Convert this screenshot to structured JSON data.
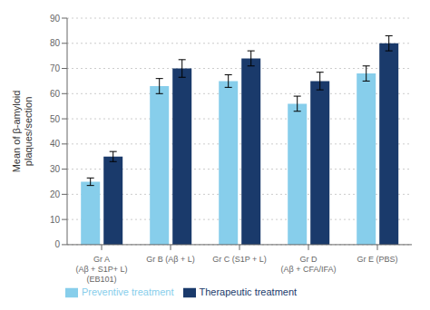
{
  "chart_data": {
    "type": "bar",
    "categories": [
      "Gr A\n(Aβ + S1P+ L)\n(EB101)",
      "Gr B (Aβ + L)",
      "Gr C (S1P + L)",
      "Gr D\n(Aβ + CFA/IFA)",
      "Gr E (PBS)"
    ],
    "series": [
      {
        "name": "Preventive treatment",
        "color": "#87CEEB",
        "values": [
          25,
          63,
          65,
          56,
          68
        ],
        "errors": [
          1.5,
          3,
          2.5,
          3,
          3
        ]
      },
      {
        "name": "Therapeutic treatment",
        "color": "#1a3a6b",
        "values": [
          35,
          70,
          74,
          65,
          80
        ],
        "errors": [
          2,
          3.5,
          3,
          3.5,
          3
        ]
      }
    ],
    "ylabel": "Mean of β-amyloid\nplaques/section",
    "ylim": [
      0,
      90
    ],
    "yticks": [
      0,
      10,
      20,
      30,
      40,
      50,
      60,
      70,
      80,
      90
    ],
    "grid": true,
    "legend": "bottom"
  }
}
